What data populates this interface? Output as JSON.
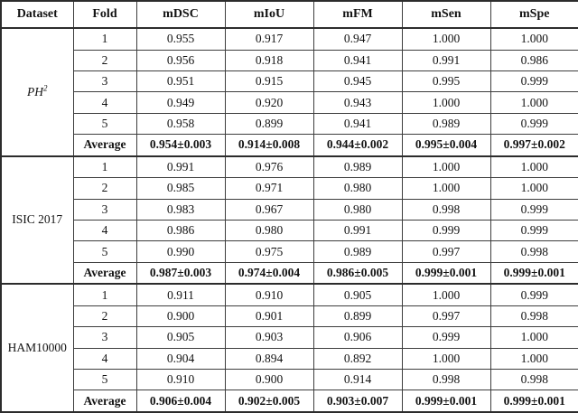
{
  "colors": {
    "text": "#131313",
    "border": "#3d3d3d",
    "outer_border": "#2c2c2c",
    "background": "#ffffff"
  },
  "table": {
    "headers": [
      "Dataset",
      "Fold",
      "mDSC",
      "mIoU",
      "mFM",
      "mSen",
      "mSpe"
    ],
    "sections": [
      {
        "dataset": "PH",
        "dataset_sup": "2",
        "dataset_italic": true,
        "rows": [
          {
            "fold": "1",
            "values": [
              "0.955",
              "0.917",
              "0.947",
              "1.000",
              "1.000"
            ]
          },
          {
            "fold": "2",
            "values": [
              "0.956",
              "0.918",
              "0.941",
              "0.991",
              "0.986"
            ]
          },
          {
            "fold": "3",
            "values": [
              "0.951",
              "0.915",
              "0.945",
              "0.995",
              "0.999"
            ]
          },
          {
            "fold": "4",
            "values": [
              "0.949",
              "0.920",
              "0.943",
              "1.000",
              "1.000"
            ]
          },
          {
            "fold": "5",
            "values": [
              "0.958",
              "0.899",
              "0.941",
              "0.989",
              "0.999"
            ]
          },
          {
            "fold": "Average",
            "bold": true,
            "values": [
              "0.954±0.003",
              "0.914±0.008",
              "0.944±0.002",
              "0.995±0.004",
              "0.997±0.002"
            ]
          }
        ]
      },
      {
        "dataset": "ISIC 2017",
        "dataset_italic": false,
        "rows": [
          {
            "fold": "1",
            "values": [
              "0.991",
              "0.976",
              "0.989",
              "1.000",
              "1.000"
            ]
          },
          {
            "fold": "2",
            "values": [
              "0.985",
              "0.971",
              "0.980",
              "1.000",
              "1.000"
            ]
          },
          {
            "fold": "3",
            "values": [
              "0.983",
              "0.967",
              "0.980",
              "0.998",
              "0.999"
            ]
          },
          {
            "fold": "4",
            "values": [
              "0.986",
              "0.980",
              "0.991",
              "0.999",
              "0.999"
            ]
          },
          {
            "fold": "5",
            "values": [
              "0.990",
              "0.975",
              "0.989",
              "0.997",
              "0.998"
            ]
          },
          {
            "fold": "Average",
            "bold": true,
            "values": [
              "0.987±0.003",
              "0.974±0.004",
              "0.986±0.005",
              "0.999±0.001",
              "0.999±0.001"
            ]
          }
        ]
      },
      {
        "dataset": "HAM10000",
        "dataset_italic": false,
        "rows": [
          {
            "fold": "1",
            "values": [
              "0.911",
              "0.910",
              "0.905",
              "1.000",
              "0.999"
            ]
          },
          {
            "fold": "2",
            "values": [
              "0.900",
              "0.901",
              "0.899",
              "0.997",
              "0.998"
            ]
          },
          {
            "fold": "3",
            "values": [
              "0.905",
              "0.903",
              "0.906",
              "0.999",
              "1.000"
            ]
          },
          {
            "fold": "4",
            "values": [
              "0.904",
              "0.894",
              "0.892",
              "1.000",
              "1.000"
            ]
          },
          {
            "fold": "5",
            "values": [
              "0.910",
              "0.900",
              "0.914",
              "0.998",
              "0.998"
            ]
          },
          {
            "fold": "Average",
            "bold": true,
            "values": [
              "0.906±0.004",
              "0.902±0.005",
              "0.903±0.007",
              "0.999±0.001",
              "0.999±0.001"
            ]
          }
        ]
      }
    ]
  }
}
